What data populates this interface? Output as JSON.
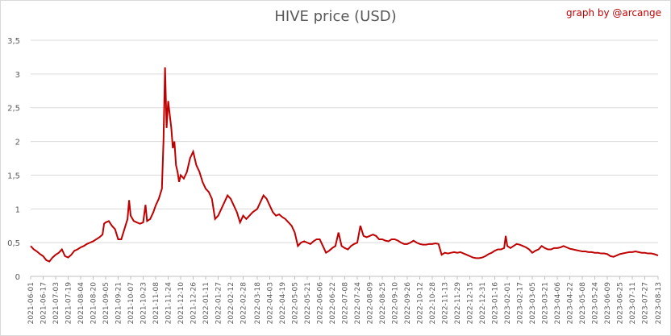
{
  "chart_data": {
    "type": "line",
    "title": "HIVE price (USD)",
    "credit": "graph by @arcange",
    "xlabel": "",
    "ylabel": "",
    "ylim": [
      0,
      3.5
    ],
    "yticks": [
      "0",
      "0,5",
      "1",
      "1,5",
      "2",
      "2,5",
      "3",
      "3,5"
    ],
    "grid": "horizontal",
    "line_color": "#c00000",
    "xticks": [
      "2021-06-01",
      "2021-06-17",
      "2021-07-03",
      "2021-07-19",
      "2021-08-04",
      "2021-08-20",
      "2021-09-05",
      "2021-09-21",
      "2021-10-07",
      "2021-10-23",
      "2021-11-08",
      "2021-11-24",
      "2021-12-10",
      "2021-12-26",
      "2022-01-11",
      "2022-01-27",
      "2022-02-12",
      "2022-02-28",
      "2022-03-18",
      "2022-04-03",
      "2022-04-19",
      "2022-05-05",
      "2022-05-21",
      "2022-06-06",
      "2022-06-22",
      "2022-07-08",
      "2022-07-24",
      "2022-08-09",
      "2022-08-25",
      "2022-09-10",
      "2022-09-26",
      "2022-10-12",
      "2022-10-28",
      "2022-11-13",
      "2022-11-29",
      "2022-12-15",
      "2022-12-31",
      "2023-01-16",
      "2023-02-01",
      "2023-02-17",
      "2023-03-05",
      "2023-03-21",
      "2023-04-06",
      "2023-04-22",
      "2023-05-08",
      "2023-05-24",
      "2023-06-09",
      "2023-06-25",
      "2023-07-11",
      "2023-07-27",
      "2023-08-13"
    ],
    "series": [
      {
        "values": [
          [
            "2021-06-01",
            0.45
          ],
          [
            "2021-06-05",
            0.4
          ],
          [
            "2021-06-09",
            0.37
          ],
          [
            "2021-06-13",
            0.33
          ],
          [
            "2021-06-17",
            0.3
          ],
          [
            "2021-06-21",
            0.24
          ],
          [
            "2021-06-25",
            0.22
          ],
          [
            "2021-06-29",
            0.28
          ],
          [
            "2021-07-03",
            0.32
          ],
          [
            "2021-07-07",
            0.35
          ],
          [
            "2021-07-11",
            0.4
          ],
          [
            "2021-07-15",
            0.3
          ],
          [
            "2021-07-19",
            0.28
          ],
          [
            "2021-07-23",
            0.32
          ],
          [
            "2021-07-27",
            0.38
          ],
          [
            "2021-07-31",
            0.4
          ],
          [
            "2021-08-04",
            0.43
          ],
          [
            "2021-08-08",
            0.45
          ],
          [
            "2021-08-12",
            0.48
          ],
          [
            "2021-08-16",
            0.5
          ],
          [
            "2021-08-20",
            0.52
          ],
          [
            "2021-08-24",
            0.55
          ],
          [
            "2021-08-28",
            0.58
          ],
          [
            "2021-09-01",
            0.62
          ],
          [
            "2021-09-03",
            0.78
          ],
          [
            "2021-09-05",
            0.8
          ],
          [
            "2021-09-09",
            0.82
          ],
          [
            "2021-09-13",
            0.75
          ],
          [
            "2021-09-17",
            0.7
          ],
          [
            "2021-09-21",
            0.55
          ],
          [
            "2021-09-25",
            0.55
          ],
          [
            "2021-09-29",
            0.7
          ],
          [
            "2021-10-03",
            0.85
          ],
          [
            "2021-10-05",
            1.13
          ],
          [
            "2021-10-07",
            0.9
          ],
          [
            "2021-10-11",
            0.82
          ],
          [
            "2021-10-15",
            0.8
          ],
          [
            "2021-10-19",
            0.78
          ],
          [
            "2021-10-23",
            0.8
          ],
          [
            "2021-10-26",
            1.06
          ],
          [
            "2021-10-28",
            0.82
          ],
          [
            "2021-11-01",
            0.85
          ],
          [
            "2021-11-05",
            0.95
          ],
          [
            "2021-11-08",
            1.05
          ],
          [
            "2021-11-12",
            1.15
          ],
          [
            "2021-11-16",
            1.3
          ],
          [
            "2021-11-18",
            2.0
          ],
          [
            "2021-11-20",
            3.1
          ],
          [
            "2021-11-22",
            2.2
          ],
          [
            "2021-11-24",
            2.6
          ],
          [
            "2021-11-26",
            2.4
          ],
          [
            "2021-11-28",
            2.2
          ],
          [
            "2021-11-30",
            1.9
          ],
          [
            "2021-12-02",
            2.0
          ],
          [
            "2021-12-04",
            1.65
          ],
          [
            "2021-12-06",
            1.55
          ],
          [
            "2021-12-08",
            1.4
          ],
          [
            "2021-12-10",
            1.5
          ],
          [
            "2021-12-14",
            1.45
          ],
          [
            "2021-12-18",
            1.55
          ],
          [
            "2021-12-22",
            1.75
          ],
          [
            "2021-12-26",
            1.85
          ],
          [
            "2021-12-30",
            1.65
          ],
          [
            "2022-01-03",
            1.55
          ],
          [
            "2022-01-07",
            1.4
          ],
          [
            "2022-01-11",
            1.3
          ],
          [
            "2022-01-15",
            1.25
          ],
          [
            "2022-01-19",
            1.15
          ],
          [
            "2022-01-23",
            0.85
          ],
          [
            "2022-01-27",
            0.9
          ],
          [
            "2022-01-31",
            1.0
          ],
          [
            "2022-02-04",
            1.1
          ],
          [
            "2022-02-08",
            1.2
          ],
          [
            "2022-02-12",
            1.15
          ],
          [
            "2022-02-16",
            1.05
          ],
          [
            "2022-02-20",
            0.95
          ],
          [
            "2022-02-24",
            0.8
          ],
          [
            "2022-02-28",
            0.9
          ],
          [
            "2022-03-04",
            0.85
          ],
          [
            "2022-03-08",
            0.9
          ],
          [
            "2022-03-12",
            0.95
          ],
          [
            "2022-03-18",
            1.0
          ],
          [
            "2022-03-22",
            1.1
          ],
          [
            "2022-03-26",
            1.2
          ],
          [
            "2022-03-30",
            1.15
          ],
          [
            "2022-04-03",
            1.05
          ],
          [
            "2022-04-07",
            0.95
          ],
          [
            "2022-04-11",
            0.9
          ],
          [
            "2022-04-15",
            0.92
          ],
          [
            "2022-04-19",
            0.88
          ],
          [
            "2022-04-23",
            0.85
          ],
          [
            "2022-04-27",
            0.8
          ],
          [
            "2022-05-01",
            0.75
          ],
          [
            "2022-05-05",
            0.65
          ],
          [
            "2022-05-09",
            0.45
          ],
          [
            "2022-05-13",
            0.5
          ],
          [
            "2022-05-17",
            0.52
          ],
          [
            "2022-05-21",
            0.5
          ],
          [
            "2022-05-25",
            0.48
          ],
          [
            "2022-05-29",
            0.52
          ],
          [
            "2022-06-02",
            0.55
          ],
          [
            "2022-06-06",
            0.55
          ],
          [
            "2022-06-10",
            0.45
          ],
          [
            "2022-06-14",
            0.35
          ],
          [
            "2022-06-18",
            0.38
          ],
          [
            "2022-06-22",
            0.42
          ],
          [
            "2022-06-26",
            0.45
          ],
          [
            "2022-06-30",
            0.65
          ],
          [
            "2022-07-04",
            0.45
          ],
          [
            "2022-07-08",
            0.42
          ],
          [
            "2022-07-12",
            0.4
          ],
          [
            "2022-07-16",
            0.45
          ],
          [
            "2022-07-20",
            0.48
          ],
          [
            "2022-07-24",
            0.5
          ],
          [
            "2022-07-28",
            0.75
          ],
          [
            "2022-08-01",
            0.6
          ],
          [
            "2022-08-05",
            0.58
          ],
          [
            "2022-08-09",
            0.6
          ],
          [
            "2022-08-13",
            0.62
          ],
          [
            "2022-08-17",
            0.6
          ],
          [
            "2022-08-21",
            0.55
          ],
          [
            "2022-08-25",
            0.55
          ],
          [
            "2022-08-29",
            0.53
          ],
          [
            "2022-09-02",
            0.52
          ],
          [
            "2022-09-06",
            0.55
          ],
          [
            "2022-09-10",
            0.55
          ],
          [
            "2022-09-14",
            0.53
          ],
          [
            "2022-09-18",
            0.5
          ],
          [
            "2022-09-22",
            0.48
          ],
          [
            "2022-09-26",
            0.48
          ],
          [
            "2022-09-30",
            0.5
          ],
          [
            "2022-10-04",
            0.53
          ],
          [
            "2022-10-08",
            0.5
          ],
          [
            "2022-10-12",
            0.48
          ],
          [
            "2022-10-16",
            0.47
          ],
          [
            "2022-10-20",
            0.47
          ],
          [
            "2022-10-24",
            0.48
          ],
          [
            "2022-10-28",
            0.48
          ],
          [
            "2022-11-01",
            0.49
          ],
          [
            "2022-11-05",
            0.48
          ],
          [
            "2022-11-09",
            0.32
          ],
          [
            "2022-11-13",
            0.35
          ],
          [
            "2022-11-17",
            0.34
          ],
          [
            "2022-11-21",
            0.35
          ],
          [
            "2022-11-25",
            0.36
          ],
          [
            "2022-11-29",
            0.35
          ],
          [
            "2022-12-03",
            0.36
          ],
          [
            "2022-12-07",
            0.34
          ],
          [
            "2022-12-11",
            0.32
          ],
          [
            "2022-12-15",
            0.3
          ],
          [
            "2022-12-19",
            0.28
          ],
          [
            "2022-12-23",
            0.27
          ],
          [
            "2022-12-27",
            0.27
          ],
          [
            "2022-12-31",
            0.28
          ],
          [
            "2023-01-04",
            0.3
          ],
          [
            "2023-01-08",
            0.33
          ],
          [
            "2023-01-12",
            0.35
          ],
          [
            "2023-01-16",
            0.38
          ],
          [
            "2023-01-20",
            0.4
          ],
          [
            "2023-01-24",
            0.4
          ],
          [
            "2023-01-28",
            0.42
          ],
          [
            "2023-01-30",
            0.6
          ],
          [
            "2023-02-01",
            0.45
          ],
          [
            "2023-02-05",
            0.42
          ],
          [
            "2023-02-09",
            0.45
          ],
          [
            "2023-02-13",
            0.48
          ],
          [
            "2023-02-17",
            0.47
          ],
          [
            "2023-02-21",
            0.45
          ],
          [
            "2023-02-25",
            0.43
          ],
          [
            "2023-03-01",
            0.4
          ],
          [
            "2023-03-05",
            0.35
          ],
          [
            "2023-03-09",
            0.38
          ],
          [
            "2023-03-13",
            0.4
          ],
          [
            "2023-03-17",
            0.45
          ],
          [
            "2023-03-21",
            0.42
          ],
          [
            "2023-03-25",
            0.4
          ],
          [
            "2023-03-29",
            0.4
          ],
          [
            "2023-04-02",
            0.42
          ],
          [
            "2023-04-06",
            0.42
          ],
          [
            "2023-04-10",
            0.43
          ],
          [
            "2023-04-14",
            0.45
          ],
          [
            "2023-04-18",
            0.43
          ],
          [
            "2023-04-22",
            0.41
          ],
          [
            "2023-04-26",
            0.4
          ],
          [
            "2023-04-30",
            0.39
          ],
          [
            "2023-05-04",
            0.38
          ],
          [
            "2023-05-08",
            0.37
          ],
          [
            "2023-05-12",
            0.37
          ],
          [
            "2023-05-16",
            0.36
          ],
          [
            "2023-05-20",
            0.36
          ],
          [
            "2023-05-24",
            0.35
          ],
          [
            "2023-05-28",
            0.35
          ],
          [
            "2023-06-01",
            0.34
          ],
          [
            "2023-06-05",
            0.34
          ],
          [
            "2023-06-09",
            0.33
          ],
          [
            "2023-06-13",
            0.3
          ],
          [
            "2023-06-17",
            0.29
          ],
          [
            "2023-06-21",
            0.31
          ],
          [
            "2023-06-25",
            0.33
          ],
          [
            "2023-06-29",
            0.34
          ],
          [
            "2023-07-03",
            0.35
          ],
          [
            "2023-07-07",
            0.36
          ],
          [
            "2023-07-11",
            0.36
          ],
          [
            "2023-07-15",
            0.37
          ],
          [
            "2023-07-19",
            0.36
          ],
          [
            "2023-07-23",
            0.35
          ],
          [
            "2023-07-27",
            0.35
          ],
          [
            "2023-07-31",
            0.34
          ],
          [
            "2023-08-04",
            0.34
          ],
          [
            "2023-08-08",
            0.33
          ],
          [
            "2023-08-13",
            0.31
          ]
        ]
      }
    ]
  }
}
